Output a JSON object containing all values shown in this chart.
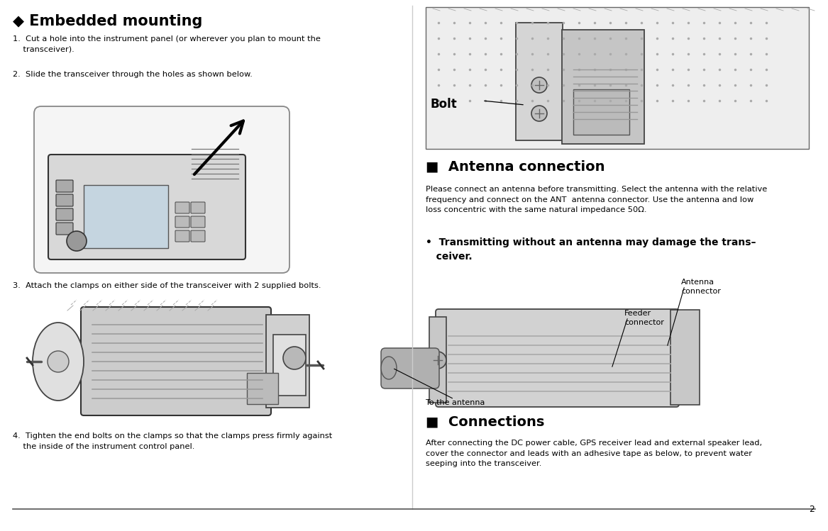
{
  "bg_color": "#ffffff",
  "page_num": "2",
  "title": "◆ Embedded mounting",
  "title_fontsize": 15,
  "section_antenna": "■  Antenna connection",
  "section_connections": "■  Connections",
  "section_fontsize": 14,
  "step1": "1.  Cut a hole into the instrument panel (or wherever you plan to mount the\n    transceiver).",
  "step2": "2.  Slide the transceiver through the holes as shown below.",
  "step3": "3.  Attach the clamps on either side of the transceiver with 2 supplied bolts.",
  "step4": "4.  Tighten the end bolts on the clamps so that the clamps press firmly against\n    the inside of the instrument control panel.",
  "antenna_text": "Please connect an antenna before transmitting. Select the antenna with the relative\nfrequency and connect on the ANT  antenna connector. Use the antenna and low\nloss concentric with the same natural impedance 50Ω.",
  "warning_text": "•  Transmitting without an antenna may damage the trans–\n   ceiver.",
  "connections_text": "After connecting the DC power cable, GPS receiver lead and external speaker lead,\ncover the connector and leads with an adhesive tape as below, to prevent water\nseeping into the transceiver.",
  "bolt_label": "Bolt",
  "ant_conn_label": "Antenna\nconnector",
  "feed_conn_label": "Feeder\nconnector",
  "to_ant_label": "To the antenna",
  "body_fs": 8.2,
  "warn_fs": 10.0,
  "label_fs": 8.0
}
